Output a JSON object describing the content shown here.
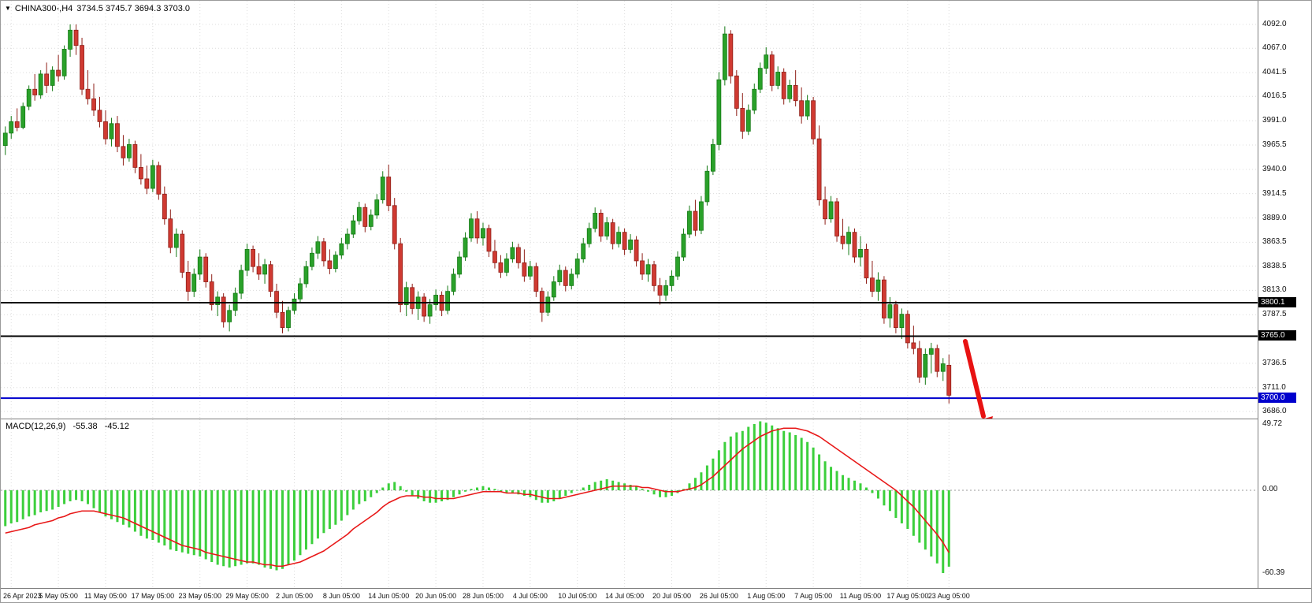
{
  "window": {
    "dropdown_icon": "▼",
    "symbol_label": "CHINA300-,H4",
    "ohlc_text": "3734.5 3745.7 3694.3 3703.0"
  },
  "macd_panel": {
    "label": "MACD(12,26,9)",
    "macd_value": "-55.38",
    "signal_value": "-45.12",
    "axis_labels": [
      "49.72",
      "0.00",
      "-60.39"
    ]
  },
  "colors": {
    "up": "#2aa12a",
    "up_border": "#157a15",
    "down": "#d03a32",
    "down_border": "#8f1f18",
    "grid": "#dcdcdc",
    "separator": "#808080",
    "macd_hist": "#3ccf3c",
    "macd_signal": "#e81818",
    "level_black": "#000000",
    "level_blue": "#0000cd",
    "arrow": "#e81212",
    "axis_text": "#111111"
  },
  "arrow": {
    "color": "#e81212",
    "direction": "down-right"
  },
  "chart_data": {
    "type": "candlestick",
    "symbol": "CHINA300-",
    "timeframe": "H4",
    "title": "CHINA300-,H4",
    "last_bar_ohlc": {
      "open": 3734.5,
      "high": 3745.7,
      "low": 3694.3,
      "close": 3703.0
    },
    "y_axis_range": [
      3686.0,
      4092.0
    ],
    "y_ticks": [
      "4092.0",
      "4067.0",
      "4041.5",
      "4016.5",
      "3991.0",
      "3965.5",
      "3940.0",
      "3914.5",
      "3889.0",
      "3863.5",
      "3838.5",
      "3813.0",
      "3787.5",
      "3736.5",
      "3711.0",
      "3686.0"
    ],
    "x_labels": [
      {
        "text": "26 Apr 2023",
        "bar": 1
      },
      {
        "text": "5 May 05:00",
        "bar": 9
      },
      {
        "text": "11 May 05:00",
        "bar": 17
      },
      {
        "text": "17 May 05:00",
        "bar": 25
      },
      {
        "text": "23 May 05:00",
        "bar": 33
      },
      {
        "text": "29 May 05:00",
        "bar": 41
      },
      {
        "text": "2 Jun 05:00",
        "bar": 49
      },
      {
        "text": "8 Jun 05:00",
        "bar": 57
      },
      {
        "text": "14 Jun 05:00",
        "bar": 65
      },
      {
        "text": "20 Jun 05:00",
        "bar": 73
      },
      {
        "text": "28 Jun 05:00",
        "bar": 81
      },
      {
        "text": "4 Jul 05:00",
        "bar": 89
      },
      {
        "text": "10 Jul 05:00",
        "bar": 97
      },
      {
        "text": "14 Jul 05:00",
        "bar": 105
      },
      {
        "text": "20 Jul 05:00",
        "bar": 113
      },
      {
        "text": "26 Jul 05:00",
        "bar": 121
      },
      {
        "text": "1 Aug 05:00",
        "bar": 129
      },
      {
        "text": "7 Aug 05:00",
        "bar": 137
      },
      {
        "text": "11 Aug 05:00",
        "bar": 145
      },
      {
        "text": "17 Aug 05:00",
        "bar": 153
      },
      {
        "text": "23 Aug 05:00",
        "bar": 160
      }
    ],
    "horizontal_levels": [
      {
        "price": "3800.1",
        "value": 3800.1,
        "color": "#000000"
      },
      {
        "price": "3765.0",
        "value": 3765.0,
        "color": "#000000"
      },
      {
        "price": "3700.0",
        "value": 3700.0,
        "color": "#0000cd"
      }
    ],
    "annotations": [
      {
        "type": "arrow",
        "direction": "down-right",
        "color": "#e81212"
      }
    ],
    "candles": [
      [
        3965,
        3985,
        3955,
        3978
      ],
      [
        3978,
        3996,
        3972,
        3990
      ],
      [
        3990,
        4004,
        3980,
        3984
      ],
      [
        3984,
        4010,
        3982,
        4006
      ],
      [
        4006,
        4028,
        4002,
        4024
      ],
      [
        4024,
        4040,
        4012,
        4018
      ],
      [
        4018,
        4044,
        4014,
        4040
      ],
      [
        4040,
        4052,
        4020,
        4028
      ],
      [
        4028,
        4048,
        4022,
        4044
      ],
      [
        4044,
        4060,
        4032,
        4038
      ],
      [
        4038,
        4070,
        4034,
        4066
      ],
      [
        4066,
        4092,
        4058,
        4086
      ],
      [
        4086,
        4092,
        4060,
        4070
      ],
      [
        4070,
        4078,
        4018,
        4024
      ],
      [
        4024,
        4044,
        4008,
        4014
      ],
      [
        4014,
        4030,
        3996,
        4002
      ],
      [
        4002,
        4016,
        3984,
        3990
      ],
      [
        3990,
        4002,
        3966,
        3972
      ],
      [
        3972,
        3994,
        3964,
        3988
      ],
      [
        3988,
        3996,
        3958,
        3964
      ],
      [
        3964,
        3976,
        3944,
        3952
      ],
      [
        3952,
        3972,
        3948,
        3966
      ],
      [
        3966,
        3970,
        3936,
        3942
      ],
      [
        3942,
        3956,
        3924,
        3930
      ],
      [
        3930,
        3944,
        3914,
        3920
      ],
      [
        3920,
        3950,
        3916,
        3944
      ],
      [
        3944,
        3948,
        3908,
        3914
      ],
      [
        3914,
        3922,
        3882,
        3888
      ],
      [
        3888,
        3898,
        3852,
        3858
      ],
      [
        3858,
        3878,
        3848,
        3872
      ],
      [
        3872,
        3876,
        3826,
        3832
      ],
      [
        3832,
        3844,
        3802,
        3812
      ],
      [
        3812,
        3836,
        3806,
        3830
      ],
      [
        3830,
        3856,
        3824,
        3848
      ],
      [
        3848,
        3852,
        3816,
        3822
      ],
      [
        3822,
        3830,
        3792,
        3798
      ],
      [
        3798,
        3812,
        3786,
        3806
      ],
      [
        3806,
        3810,
        3774,
        3780
      ],
      [
        3780,
        3798,
        3770,
        3792
      ],
      [
        3792,
        3816,
        3786,
        3810
      ],
      [
        3810,
        3840,
        3804,
        3834
      ],
      [
        3834,
        3862,
        3828,
        3856
      ],
      [
        3856,
        3860,
        3832,
        3838
      ],
      [
        3838,
        3852,
        3824,
        3830
      ],
      [
        3830,
        3846,
        3820,
        3840
      ],
      [
        3840,
        3844,
        3806,
        3812
      ],
      [
        3812,
        3820,
        3784,
        3790
      ],
      [
        3790,
        3802,
        3768,
        3774
      ],
      [
        3774,
        3796,
        3770,
        3792
      ],
      [
        3792,
        3810,
        3788,
        3804
      ],
      [
        3804,
        3826,
        3800,
        3820
      ],
      [
        3820,
        3844,
        3816,
        3838
      ],
      [
        3838,
        3858,
        3834,
        3852
      ],
      [
        3852,
        3870,
        3846,
        3864
      ],
      [
        3864,
        3868,
        3838,
        3844
      ],
      [
        3844,
        3856,
        3830,
        3836
      ],
      [
        3836,
        3854,
        3832,
        3850
      ],
      [
        3850,
        3868,
        3846,
        3862
      ],
      [
        3862,
        3878,
        3856,
        3872
      ],
      [
        3872,
        3892,
        3868,
        3886
      ],
      [
        3886,
        3906,
        3882,
        3900
      ],
      [
        3900,
        3904,
        3874,
        3880
      ],
      [
        3880,
        3898,
        3876,
        3892
      ],
      [
        3892,
        3914,
        3888,
        3908
      ],
      [
        3908,
        3938,
        3904,
        3932
      ],
      [
        3932,
        3945,
        3896,
        3902
      ],
      [
        3902,
        3910,
        3856,
        3862
      ],
      [
        3862,
        3868,
        3790,
        3798
      ],
      [
        3798,
        3822,
        3786,
        3816
      ],
      [
        3816,
        3820,
        3788,
        3794
      ],
      [
        3794,
        3812,
        3782,
        3806
      ],
      [
        3806,
        3810,
        3780,
        3786
      ],
      [
        3786,
        3804,
        3778,
        3798
      ],
      [
        3798,
        3814,
        3792,
        3808
      ],
      [
        3808,
        3812,
        3786,
        3792
      ],
      [
        3792,
        3818,
        3788,
        3812
      ],
      [
        3812,
        3836,
        3808,
        3830
      ],
      [
        3830,
        3854,
        3826,
        3848
      ],
      [
        3848,
        3874,
        3844,
        3868
      ],
      [
        3868,
        3894,
        3864,
        3888
      ],
      [
        3888,
        3896,
        3862,
        3868
      ],
      [
        3868,
        3884,
        3860,
        3878
      ],
      [
        3878,
        3882,
        3848,
        3854
      ],
      [
        3854,
        3866,
        3836,
        3842
      ],
      [
        3842,
        3850,
        3826,
        3832
      ],
      [
        3832,
        3852,
        3828,
        3846
      ],
      [
        3846,
        3864,
        3842,
        3858
      ],
      [
        3858,
        3862,
        3836,
        3842
      ],
      [
        3842,
        3856,
        3822,
        3828
      ],
      [
        3828,
        3844,
        3824,
        3838
      ],
      [
        3838,
        3842,
        3806,
        3812
      ],
      [
        3812,
        3816,
        3780,
        3790
      ],
      [
        3790,
        3812,
        3786,
        3806
      ],
      [
        3806,
        3828,
        3802,
        3822
      ],
      [
        3822,
        3840,
        3818,
        3834
      ],
      [
        3834,
        3838,
        3812,
        3818
      ],
      [
        3818,
        3836,
        3814,
        3830
      ],
      [
        3830,
        3852,
        3826,
        3846
      ],
      [
        3846,
        3868,
        3842,
        3862
      ],
      [
        3862,
        3884,
        3858,
        3878
      ],
      [
        3878,
        3900,
        3874,
        3894
      ],
      [
        3894,
        3898,
        3864,
        3870
      ],
      [
        3870,
        3890,
        3866,
        3884
      ],
      [
        3884,
        3888,
        3856,
        3862
      ],
      [
        3862,
        3880,
        3858,
        3874
      ],
      [
        3874,
        3878,
        3850,
        3856
      ],
      [
        3856,
        3872,
        3852,
        3866
      ],
      [
        3866,
        3870,
        3838,
        3844
      ],
      [
        3844,
        3852,
        3824,
        3830
      ],
      [
        3830,
        3846,
        3822,
        3840
      ],
      [
        3840,
        3844,
        3812,
        3818
      ],
      [
        3818,
        3826,
        3798,
        3808
      ],
      [
        3808,
        3824,
        3802,
        3818
      ],
      [
        3818,
        3834,
        3812,
        3828
      ],
      [
        3828,
        3854,
        3824,
        3848
      ],
      [
        3848,
        3878,
        3844,
        3872
      ],
      [
        3872,
        3902,
        3868,
        3896
      ],
      [
        3896,
        3908,
        3870,
        3876
      ],
      [
        3876,
        3912,
        3872,
        3906
      ],
      [
        3906,
        3944,
        3902,
        3938
      ],
      [
        3938,
        3972,
        3934,
        3966
      ],
      [
        3966,
        4042,
        3960,
        4034
      ],
      [
        4034,
        4090,
        4028,
        4082
      ],
      [
        4082,
        4086,
        4030,
        4038
      ],
      [
        4038,
        4044,
        3996,
        4004
      ],
      [
        4004,
        4020,
        3972,
        3980
      ],
      [
        3980,
        4008,
        3976,
        4002
      ],
      [
        4002,
        4030,
        3998,
        4024
      ],
      [
        4024,
        4052,
        4020,
        4046
      ],
      [
        4046,
        4068,
        4040,
        4060
      ],
      [
        4060,
        4064,
        4022,
        4028
      ],
      [
        4028,
        4048,
        4024,
        4042
      ],
      [
        4042,
        4046,
        4008,
        4014
      ],
      [
        4014,
        4034,
        4010,
        4028
      ],
      [
        4028,
        4044,
        4006,
        4012
      ],
      [
        4012,
        4026,
        3988,
        3996
      ],
      [
        3996,
        4018,
        3992,
        4012
      ],
      [
        4012,
        4016,
        3966,
        3972
      ],
      [
        3972,
        3986,
        3902,
        3908
      ],
      [
        3908,
        3922,
        3882,
        3888
      ],
      [
        3888,
        3912,
        3884,
        3906
      ],
      [
        3906,
        3910,
        3864,
        3870
      ],
      [
        3870,
        3888,
        3856,
        3862
      ],
      [
        3862,
        3880,
        3850,
        3874
      ],
      [
        3874,
        3878,
        3842,
        3848
      ],
      [
        3848,
        3870,
        3838,
        3856
      ],
      [
        3856,
        3862,
        3820,
        3826
      ],
      [
        3826,
        3844,
        3806,
        3812
      ],
      [
        3812,
        3832,
        3802,
        3824
      ],
      [
        3824,
        3828,
        3778,
        3784
      ],
      [
        3784,
        3806,
        3774,
        3798
      ],
      [
        3798,
        3802,
        3768,
        3774
      ],
      [
        3774,
        3794,
        3762,
        3788
      ],
      [
        3788,
        3792,
        3752,
        3758
      ],
      [
        3758,
        3776,
        3746,
        3752
      ],
      [
        3752,
        3760,
        3716,
        3722
      ],
      [
        3722,
        3752,
        3714,
        3746
      ],
      [
        3746,
        3758,
        3726,
        3752
      ],
      [
        3752,
        3756,
        3722,
        3728
      ],
      [
        3728,
        3742,
        3718,
        3736
      ],
      [
        3734.5,
        3745.7,
        3694.3,
        3703.0
      ]
    ],
    "indicators": {
      "macd": {
        "params": [
          12,
          26,
          9
        ],
        "axis_range": [
          -60.39,
          49.72
        ],
        "current": {
          "macd": -55.38,
          "signal": -45.12
        },
        "histogram": [
          -26,
          -24,
          -23,
          -21,
          -19,
          -18,
          -16,
          -15,
          -14,
          -12,
          -10,
          -8,
          -7,
          -8,
          -10,
          -13,
          -16,
          -19,
          -21,
          -23,
          -25,
          -27,
          -30,
          -33,
          -35,
          -36,
          -38,
          -40,
          -43,
          -44,
          -45,
          -46,
          -47,
          -48,
          -50,
          -52,
          -54,
          -55,
          -56,
          -55,
          -54,
          -53,
          -53,
          -54,
          -56,
          -57,
          -58,
          -57,
          -54,
          -51,
          -47,
          -43,
          -39,
          -35,
          -31,
          -28,
          -25,
          -22,
          -18,
          -14,
          -10,
          -8,
          -5,
          -2,
          2,
          5,
          6,
          3,
          -1,
          -4,
          -6,
          -8,
          -9,
          -9,
          -8,
          -7,
          -5,
          -3,
          -1,
          1,
          2,
          3,
          2,
          1,
          -1,
          -2,
          -2,
          -3,
          -4,
          -5,
          -7,
          -9,
          -9,
          -8,
          -6,
          -4,
          -2,
          0,
          2,
          4,
          6,
          7,
          8,
          7,
          6,
          5,
          4,
          3,
          1,
          -1,
          -3,
          -5,
          -5,
          -4,
          -2,
          1,
          5,
          9,
          13,
          18,
          23,
          29,
          35,
          39,
          42,
          43,
          46,
          48,
          50,
          49,
          47,
          45,
          43,
          42,
          40,
          38,
          35,
          31,
          26,
          21,
          17,
          14,
          11,
          9,
          7,
          5,
          2,
          -2,
          -6,
          -11,
          -15,
          -20,
          -24,
          -28,
          -33,
          -38,
          -43,
          -48,
          -53,
          -60,
          -55.38
        ],
        "signal": [
          -31,
          -30,
          -29,
          -28,
          -27,
          -25,
          -24,
          -23,
          -22,
          -20,
          -19,
          -17,
          -16,
          -15,
          -15,
          -15,
          -16,
          -17,
          -18,
          -19,
          -20,
          -22,
          -24,
          -26,
          -28,
          -30,
          -32,
          -34,
          -36,
          -38,
          -40,
          -41,
          -42,
          -43,
          -45,
          -46,
          -47,
          -48,
          -49,
          -50,
          -51,
          -52,
          -52,
          -53,
          -54,
          -54,
          -55,
          -55,
          -54,
          -53,
          -52,
          -50,
          -48,
          -46,
          -44,
          -41,
          -38,
          -35,
          -32,
          -28,
          -25,
          -22,
          -19,
          -16,
          -12,
          -9,
          -7,
          -5,
          -4,
          -4,
          -4,
          -5,
          -5,
          -6,
          -6,
          -6,
          -6,
          -5,
          -4,
          -3,
          -2,
          -1,
          -1,
          -1,
          -1,
          -2,
          -2,
          -2,
          -3,
          -3,
          -4,
          -5,
          -6,
          -6,
          -6,
          -5,
          -4,
          -3,
          -2,
          -1,
          0,
          1,
          2,
          3,
          3,
          3,
          3,
          3,
          2,
          2,
          1,
          0,
          -1,
          -1,
          -1,
          0,
          1,
          2,
          4,
          7,
          10,
          14,
          18,
          22,
          26,
          30,
          33,
          36,
          39,
          41,
          43,
          44,
          45,
          45,
          45,
          44,
          43,
          41,
          39,
          36,
          33,
          30,
          27,
          24,
          21,
          18,
          15,
          12,
          9,
          6,
          3,
          0,
          -4,
          -8,
          -12,
          -17,
          -22,
          -27,
          -32,
          -38,
          -45.12
        ]
      }
    }
  }
}
